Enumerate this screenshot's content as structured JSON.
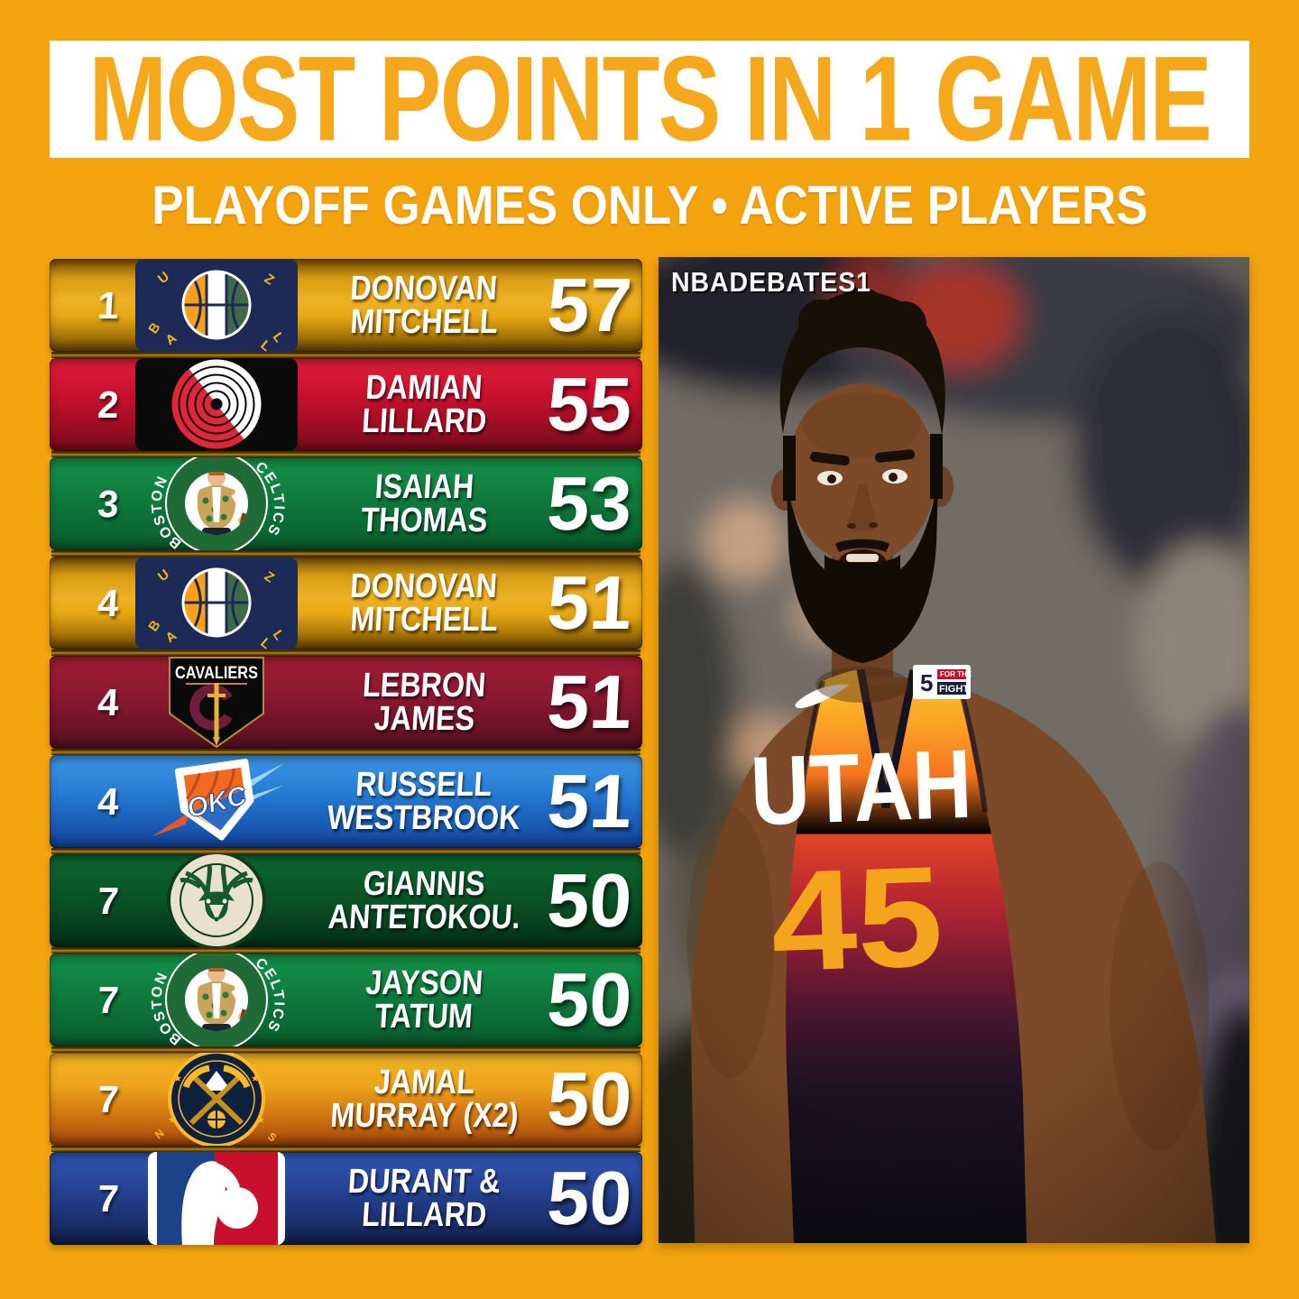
{
  "header": {
    "title": "MOST POINTS IN 1 GAME",
    "subtitle": "PLAYOFF GAMES ONLY • ACTIVE PLAYERS",
    "background_color": "#F2A30D",
    "title_band_color": "#FFFFFF",
    "title_text_color": "#F6A81C"
  },
  "watermark": "NBADEBATES1",
  "leaderboard": {
    "rows": [
      {
        "rank": "1",
        "logo": "jazz",
        "name_line1": "DONOVAN",
        "name_line2": "MITCHELL",
        "points": "57",
        "gradient_stops": [
          "#7E5606 0%",
          "#D99E14 22%",
          "#EFB124 45%",
          "#E7A713 62%",
          "#9A6B06 88%",
          "#6E4A02 100%"
        ]
      },
      {
        "rank": "2",
        "logo": "blazers",
        "name_line1": "DAMIAN",
        "name_line2": "LILLARD",
        "points": "55",
        "gradient_stops": [
          "#E2203A 0%",
          "#C8102E 40%",
          "#9A0E22 75%",
          "#7E0C1C 100%"
        ]
      },
      {
        "rank": "3",
        "logo": "celtics",
        "name_line1": "ISAIAH",
        "name_line2": "THOMAS",
        "points": "53",
        "gradient_stops": [
          "#15934B 0%",
          "#0F7A3C 45%",
          "#0A5C2E 100%"
        ]
      },
      {
        "rank": "4",
        "logo": "jazz",
        "name_line1": "DONOVAN",
        "name_line2": "MITCHELL",
        "points": "51",
        "gradient_stops": [
          "#7E5606 0%",
          "#D99E14 22%",
          "#EFB124 45%",
          "#E7A713 62%",
          "#9A6B06 88%",
          "#6E4A02 100%"
        ]
      },
      {
        "rank": "4",
        "logo": "cavaliers",
        "name_line1": "LEBRON",
        "name_line2": "JAMES",
        "points": "51",
        "gradient_stops": [
          "#A31D36 0%",
          "#8A1830 45%",
          "#561021 100%"
        ]
      },
      {
        "rank": "4",
        "logo": "thunder",
        "name_line1": "RUSSELL",
        "name_line2": "WESTBROOK",
        "points": "51",
        "gradient_stops": [
          "#3E97E8 0%",
          "#2478D0 45%",
          "#1244A0 100%"
        ]
      },
      {
        "rank": "7",
        "logo": "bucks",
        "name_line1": "GIANNIS",
        "name_line2": "ANTETOKOU.",
        "points": "50",
        "gradient_stops": [
          "#0D6831 0%",
          "#0A5226 50%",
          "#043016 100%"
        ]
      },
      {
        "rank": "7",
        "logo": "celtics",
        "name_line1": "JAYSON",
        "name_line2": "TATUM",
        "points": "50",
        "gradient_stops": [
          "#15934B 0%",
          "#0F7A3C 45%",
          "#0A5C2E 100%"
        ]
      },
      {
        "rank": "7",
        "logo": "nuggets",
        "name_line1": "JAMAL",
        "name_line2": "MURRAY (X2)",
        "points": "50",
        "gradient_stops": [
          "#F5B525 0%",
          "#EDA41C 35%",
          "#D47912 65%",
          "#A8490C 100%"
        ]
      },
      {
        "rank": "7",
        "logo": "nba",
        "name_line1": "DURANT &",
        "name_line2": "LILLARD",
        "points": "50",
        "gradient_stops": [
          "#3356B4 0%",
          "#24418F 45%",
          "#13204E 100%"
        ]
      }
    ]
  },
  "photo": {
    "jersey_wordmark": "UTAH",
    "jersey_number": "45",
    "jersey_number_color": "#F4A41D",
    "patch_number": "5",
    "patch_text_top": "FOR THE",
    "patch_text_bottom": "FIGHT"
  }
}
